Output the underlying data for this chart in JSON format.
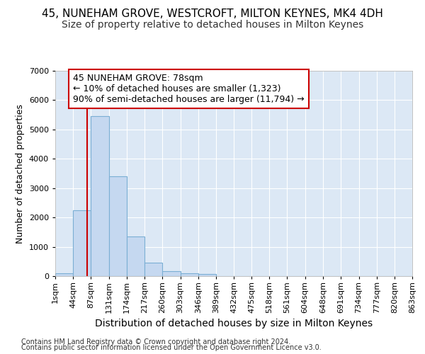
{
  "title1": "45, NUNEHAM GROVE, WESTCROFT, MILTON KEYNES, MK4 4DH",
  "title2": "Size of property relative to detached houses in Milton Keynes",
  "xlabel": "Distribution of detached houses by size in Milton Keynes",
  "ylabel": "Number of detached properties",
  "bin_edges": [
    1,
    44,
    87,
    131,
    174,
    217,
    260,
    303,
    346,
    389,
    432,
    475,
    518,
    561,
    604,
    648,
    691,
    734,
    777,
    820,
    863
  ],
  "bar_heights": [
    100,
    2250,
    5450,
    3400,
    1350,
    450,
    175,
    100,
    75,
    0,
    0,
    0,
    0,
    0,
    0,
    0,
    0,
    0,
    0,
    0
  ],
  "bar_color": "#c5d8f0",
  "bar_edgecolor": "#7bafd4",
  "bar_linewidth": 0.8,
  "property_size": 78,
  "vline_color": "#cc0000",
  "annotation_line1": "45 NUNEHAM GROVE: 78sqm",
  "annotation_line2": "← 10% of detached houses are smaller (1,323)",
  "annotation_line3": "90% of semi-detached houses are larger (11,794) →",
  "annotation_box_facecolor": "#ffffff",
  "annotation_box_edgecolor": "#cc0000",
  "ylim": [
    0,
    7000
  ],
  "yticks": [
    0,
    1000,
    2000,
    3000,
    4000,
    5000,
    6000,
    7000
  ],
  "tick_labels": [
    "1sqm",
    "44sqm",
    "87sqm",
    "131sqm",
    "174sqm",
    "217sqm",
    "260sqm",
    "303sqm",
    "346sqm",
    "389sqm",
    "432sqm",
    "475sqm",
    "518sqm",
    "561sqm",
    "604sqm",
    "648sqm",
    "691sqm",
    "734sqm",
    "777sqm",
    "820sqm",
    "863sqm"
  ],
  "footer1": "Contains HM Land Registry data © Crown copyright and database right 2024.",
  "footer2": "Contains public sector information licensed under the Open Government Licence v3.0.",
  "fig_background": "#ffffff",
  "plot_background": "#dce8f5",
  "grid_color": "#ffffff",
  "title1_fontsize": 11,
  "title2_fontsize": 10,
  "xlabel_fontsize": 10,
  "ylabel_fontsize": 9,
  "tick_fontsize": 8,
  "footer_fontsize": 7
}
